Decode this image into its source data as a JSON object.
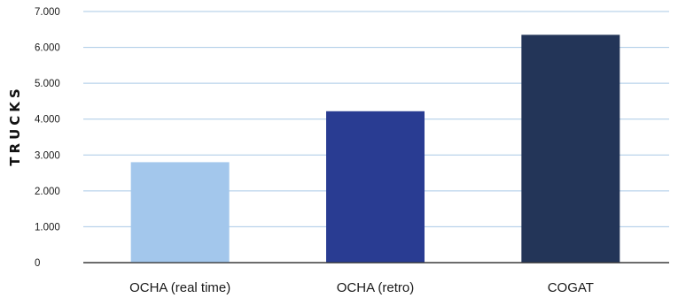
{
  "chart_data": {
    "type": "bar",
    "title": "",
    "xlabel": "",
    "ylabel": "TRUCKS",
    "ylim": [
      0,
      7000
    ],
    "yticks": [
      0,
      1000,
      2000,
      3000,
      4000,
      5000,
      6000,
      7000
    ],
    "ytick_labels": [
      "0",
      "1.000",
      "2.000",
      "3.000",
      "4.000",
      "5.000",
      "6.000",
      "7.000"
    ],
    "grid": true,
    "legend": "none",
    "categories": [
      "OCHA (real time)",
      "OCHA (retro)",
      "COGAT"
    ],
    "values": [
      2800,
      4220,
      6350
    ],
    "colors": [
      "#a3c7ec",
      "#293c92",
      "#233558"
    ],
    "grid_color": "#a9c9e6",
    "axis_color": "#333333"
  }
}
